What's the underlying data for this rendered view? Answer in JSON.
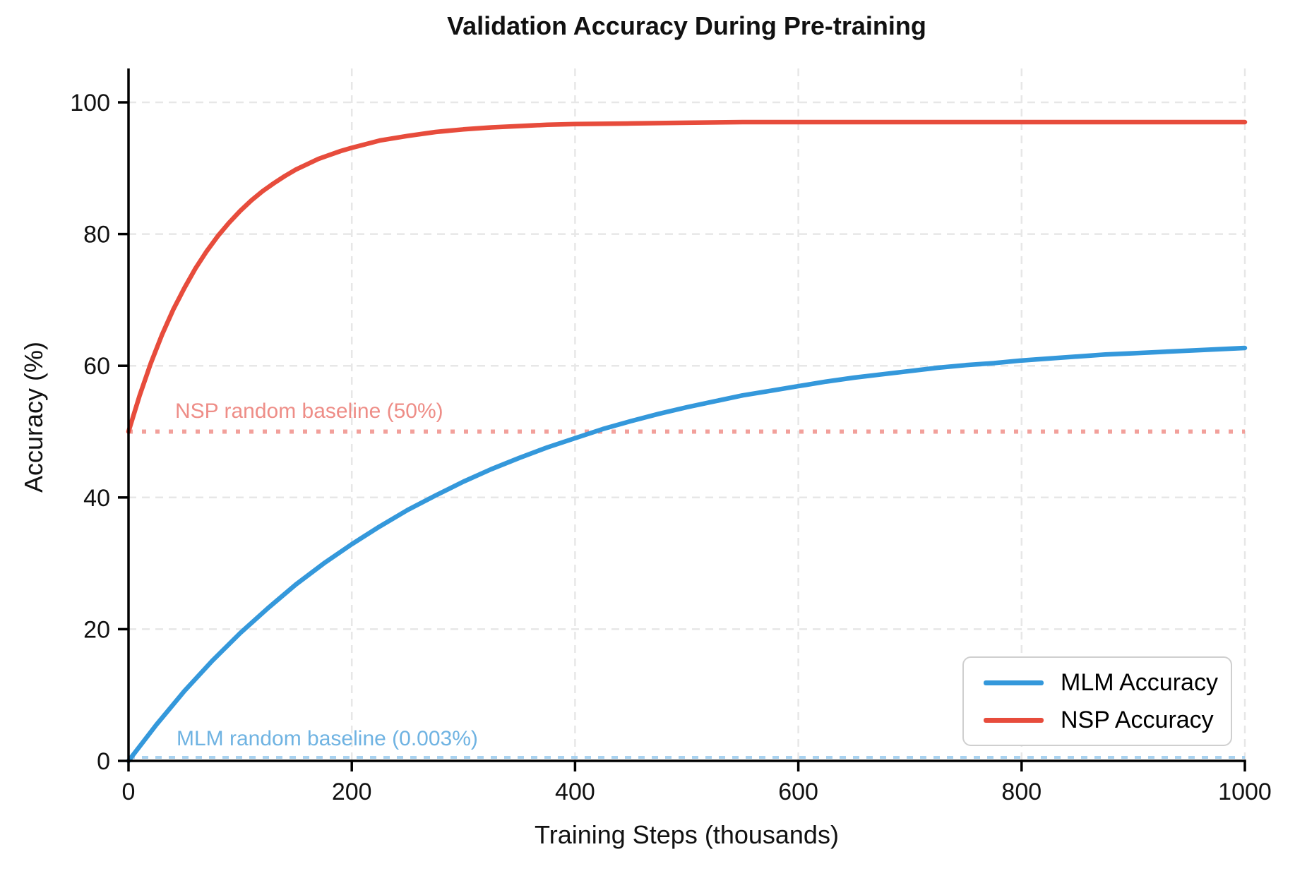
{
  "title": "Validation Accuracy During Pre-training",
  "colors": {
    "mlm_line": "#3498db",
    "nsp_line": "#e74c3c",
    "nsp_baseline_line": "#f2a09b",
    "nsp_baseline_text": "#ee8d87",
    "mlm_baseline_line": "#a8d2f0",
    "mlm_baseline_text": "#6fb3e2",
    "grid": "#e7e7e7",
    "spine": "#000000"
  },
  "chart_data": {
    "type": "line",
    "title": "Validation Accuracy During Pre-training",
    "xlabel": "Training Steps (thousands)",
    "ylabel": "Accuracy (%)",
    "xlim": [
      0,
      1000
    ],
    "ylim": [
      0,
      105
    ],
    "xticks": [
      0,
      200,
      400,
      600,
      800,
      1000
    ],
    "yticks": [
      0,
      20,
      40,
      60,
      80,
      100
    ],
    "grid": true,
    "legend_position": "lower right",
    "series": [
      {
        "name": "MLM Accuracy",
        "color": "#3498db",
        "x": [
          0,
          25,
          50,
          75,
          100,
          125,
          150,
          175,
          200,
          225,
          250,
          275,
          300,
          325,
          350,
          375,
          400,
          425,
          450,
          475,
          500,
          525,
          550,
          575,
          600,
          625,
          650,
          675,
          700,
          725,
          750,
          775,
          800,
          825,
          850,
          875,
          900,
          925,
          950,
          975,
          1000
        ],
        "y": [
          0,
          5.5,
          10.6,
          15.2,
          19.4,
          23.2,
          26.8,
          30.0,
          32.9,
          35.6,
          38.1,
          40.3,
          42.4,
          44.3,
          46.0,
          47.6,
          49.0,
          50.4,
          51.6,
          52.7,
          53.7,
          54.6,
          55.5,
          56.2,
          56.9,
          57.6,
          58.2,
          58.7,
          59.2,
          59.7,
          60.1,
          60.4,
          60.8,
          61.1,
          61.4,
          61.7,
          61.9,
          62.1,
          62.3,
          62.5,
          62.7
        ]
      },
      {
        "name": "NSP Accuracy",
        "color": "#e74c3c",
        "x": [
          0,
          10,
          20,
          30,
          40,
          50,
          60,
          70,
          80,
          90,
          100,
          110,
          120,
          130,
          140,
          150,
          160,
          170,
          180,
          190,
          200,
          225,
          250,
          275,
          300,
          325,
          350,
          375,
          400,
          450,
          500,
          550,
          600,
          650,
          700,
          750,
          800,
          850,
          900,
          950,
          1000
        ],
        "y": [
          50,
          55.5,
          60.4,
          64.7,
          68.5,
          71.8,
          74.8,
          77.4,
          79.7,
          81.7,
          83.5,
          85.1,
          86.5,
          87.7,
          88.8,
          89.8,
          90.6,
          91.4,
          92.0,
          92.6,
          93.1,
          94.2,
          94.9,
          95.5,
          95.9,
          96.2,
          96.4,
          96.6,
          96.7,
          96.8,
          96.9,
          97.0,
          97.0,
          97.0,
          97.0,
          97.0,
          97.0,
          97.0,
          97.0,
          97.0,
          97.0
        ]
      }
    ],
    "baselines": [
      {
        "label": "NSP random baseline (50%)",
        "value": 50,
        "line_color": "#f2a09b",
        "text_color": "#ee8d87",
        "style": "dotted"
      },
      {
        "label": "MLM random baseline (0.003%)",
        "value": 0.003,
        "line_color": "#a8d2f0",
        "text_color": "#6fb3e2",
        "style": "dotted"
      }
    ]
  }
}
